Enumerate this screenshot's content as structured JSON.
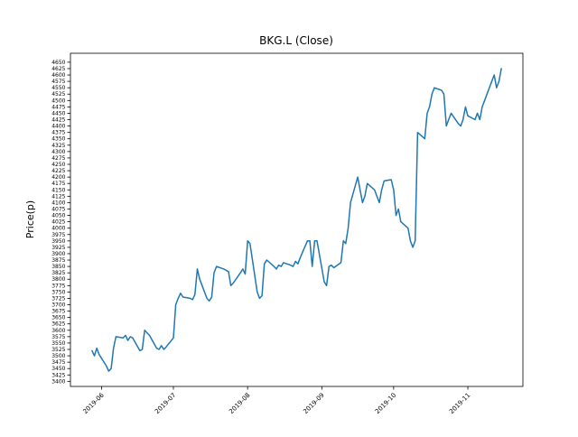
{
  "chart_data": {
    "type": "line",
    "title": "BKG.L (Close)",
    "xlabel": "",
    "ylabel": "Price(p)",
    "legend": "none",
    "grid": false,
    "line_color": "#1f77b4",
    "background_color": "#ffffff",
    "ylim": [
      3380,
      4685
    ],
    "xlim": [
      "2019-05-19",
      "2019-11-24"
    ],
    "yticks": {
      "min": 3400,
      "max": 4650,
      "step": 25
    },
    "xticks": [
      {
        "label": "2019-06",
        "date": "2019-06-01"
      },
      {
        "label": "2019-07",
        "date": "2019-07-01"
      },
      {
        "label": "2019-08",
        "date": "2019-08-01"
      },
      {
        "label": "2019-09",
        "date": "2019-09-01"
      },
      {
        "label": "2019-10",
        "date": "2019-10-01"
      },
      {
        "label": "2019-11",
        "date": "2019-11-01"
      }
    ],
    "series_name": "BKG.L Close",
    "x": [
      "2019-05-28",
      "2019-05-29",
      "2019-05-30",
      "2019-05-31",
      "2019-06-03",
      "2019-06-04",
      "2019-06-05",
      "2019-06-06",
      "2019-06-07",
      "2019-06-10",
      "2019-06-11",
      "2019-06-12",
      "2019-06-13",
      "2019-06-14",
      "2019-06-17",
      "2019-06-18",
      "2019-06-19",
      "2019-06-20",
      "2019-06-21",
      "2019-06-24",
      "2019-06-25",
      "2019-06-26",
      "2019-06-27",
      "2019-06-28",
      "2019-07-01",
      "2019-07-02",
      "2019-07-03",
      "2019-07-04",
      "2019-07-05",
      "2019-07-08",
      "2019-07-09",
      "2019-07-10",
      "2019-07-11",
      "2019-07-12",
      "2019-07-15",
      "2019-07-16",
      "2019-07-17",
      "2019-07-18",
      "2019-07-19",
      "2019-07-22",
      "2019-07-23",
      "2019-07-24",
      "2019-07-25",
      "2019-07-26",
      "2019-07-29",
      "2019-07-30",
      "2019-07-31",
      "2019-08-01",
      "2019-08-02",
      "2019-08-05",
      "2019-08-06",
      "2019-08-07",
      "2019-08-08",
      "2019-08-09",
      "2019-08-12",
      "2019-08-13",
      "2019-08-14",
      "2019-08-15",
      "2019-08-16",
      "2019-08-19",
      "2019-08-20",
      "2019-08-21",
      "2019-08-22",
      "2019-08-23",
      "2019-08-26",
      "2019-08-27",
      "2019-08-28",
      "2019-08-29",
      "2019-08-30",
      "2019-09-02",
      "2019-09-03",
      "2019-09-04",
      "2019-09-05",
      "2019-09-06",
      "2019-09-09",
      "2019-09-10",
      "2019-09-11",
      "2019-09-12",
      "2019-09-13",
      "2019-09-16",
      "2019-09-17",
      "2019-09-18",
      "2019-09-19",
      "2019-09-20",
      "2019-09-23",
      "2019-09-24",
      "2019-09-25",
      "2019-09-26",
      "2019-09-27",
      "2019-09-30",
      "2019-10-01",
      "2019-10-02",
      "2019-10-03",
      "2019-10-04",
      "2019-10-07",
      "2019-10-08",
      "2019-10-09",
      "2019-10-10",
      "2019-10-11",
      "2019-10-14",
      "2019-10-15",
      "2019-10-16",
      "2019-10-17",
      "2019-10-18",
      "2019-10-21",
      "2019-10-22",
      "2019-10-23",
      "2019-10-24",
      "2019-10-25",
      "2019-10-28",
      "2019-10-29",
      "2019-10-30",
      "2019-10-31",
      "2019-11-01",
      "2019-11-04",
      "2019-11-05",
      "2019-11-06",
      "2019-11-07",
      "2019-11-08",
      "2019-11-11",
      "2019-11-12",
      "2019-11-13",
      "2019-11-14",
      "2019-11-15"
    ],
    "y": [
      3520,
      3500,
      3530,
      3505,
      3460,
      3440,
      3450,
      3530,
      3575,
      3570,
      3580,
      3560,
      3575,
      3570,
      3520,
      3525,
      3600,
      3590,
      3580,
      3530,
      3525,
      3540,
      3525,
      3535,
      3570,
      3700,
      3725,
      3745,
      3730,
      3725,
      3720,
      3740,
      3840,
      3800,
      3725,
      3715,
      3730,
      3825,
      3850,
      3840,
      3835,
      3830,
      3775,
      3785,
      3825,
      3840,
      3820,
      3950,
      3940,
      3750,
      3725,
      3735,
      3860,
      3875,
      3850,
      3840,
      3855,
      3850,
      3865,
      3855,
      3850,
      3870,
      3860,
      3885,
      3950,
      3950,
      3850,
      3950,
      3950,
      3790,
      3775,
      3850,
      3855,
      3845,
      3865,
      3950,
      3940,
      4000,
      4100,
      4200,
      4150,
      4100,
      4125,
      4175,
      4150,
      4125,
      4100,
      4150,
      4185,
      4190,
      4150,
      4050,
      4075,
      4025,
      4000,
      3950,
      3925,
      3950,
      4375,
      4350,
      4450,
      4475,
      4525,
      4550,
      4540,
      4525,
      4400,
      4425,
      4450,
      4410,
      4400,
      4425,
      4475,
      4440,
      4425,
      4450,
      4425,
      4475,
      4500,
      4575,
      4600,
      4550,
      4575,
      4625
    ]
  }
}
